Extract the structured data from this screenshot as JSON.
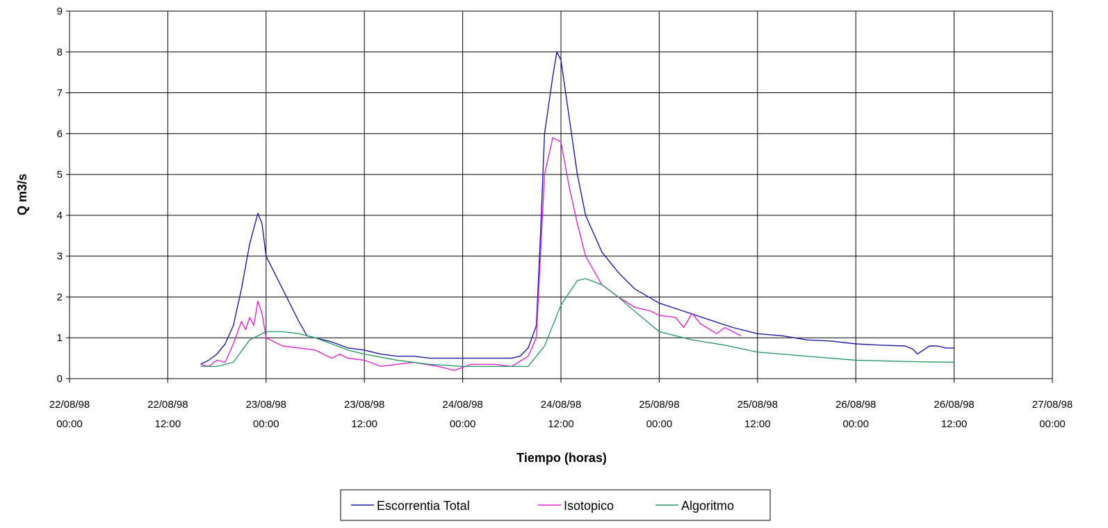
{
  "chart_data": {
    "type": "line",
    "title": "",
    "xlabel": "Tiempo (horas)",
    "ylabel": "Q m3/s",
    "ylim": [
      0,
      9
    ],
    "yticks": [
      "0",
      "1",
      "2",
      "3",
      "4",
      "5",
      "6",
      "7",
      "8",
      "9"
    ],
    "xlim": [
      "22/08/98 00:00",
      "27/08/98 00:00"
    ],
    "xticks": [
      {
        "date": "22/08/98",
        "time": "00:00"
      },
      {
        "date": "22/08/98",
        "time": "12:00"
      },
      {
        "date": "23/08/98",
        "time": "00:00"
      },
      {
        "date": "23/08/98",
        "time": "12:00"
      },
      {
        "date": "24/08/98",
        "time": "00:00"
      },
      {
        "date": "24/08/98",
        "time": "12:00"
      },
      {
        "date": "25/08/98",
        "time": "00:00"
      },
      {
        "date": "25/08/98",
        "time": "12:00"
      },
      {
        "date": "26/08/98",
        "time": "00:00"
      },
      {
        "date": "26/08/98",
        "time": "12:00"
      },
      {
        "date": "27/08/98",
        "time": "00:00"
      }
    ],
    "grid": true,
    "legend_position": "bottom",
    "series": [
      {
        "name": "Escorrentia Total",
        "color": "#1a1aa6",
        "points": [
          [
            "22/08/98 16:00",
            0.35
          ],
          [
            "22/08/98 17:00",
            0.45
          ],
          [
            "22/08/98 18:00",
            0.6
          ],
          [
            "22/08/98 19:00",
            0.85
          ],
          [
            "22/08/98 20:00",
            1.3
          ],
          [
            "22/08/98 21:00",
            2.2
          ],
          [
            "22/08/98 22:00",
            3.3
          ],
          [
            "22/08/98 23:00",
            4.05
          ],
          [
            "22/08/98 23:30",
            3.8
          ],
          [
            "23/08/98 00:00",
            3.0
          ],
          [
            "23/08/98 02:00",
            2.2
          ],
          [
            "23/08/98 04:00",
            1.4
          ],
          [
            "23/08/98 05:00",
            1.05
          ],
          [
            "23/08/98 06:00",
            1.0
          ],
          [
            "23/08/98 08:00",
            0.9
          ],
          [
            "23/08/98 10:00",
            0.75
          ],
          [
            "23/08/98 12:00",
            0.7
          ],
          [
            "23/08/98 14:00",
            0.6
          ],
          [
            "23/08/98 16:00",
            0.55
          ],
          [
            "23/08/98 18:00",
            0.55
          ],
          [
            "23/08/98 20:00",
            0.5
          ],
          [
            "24/08/98 00:00",
            0.5
          ],
          [
            "24/08/98 02:00",
            0.5
          ],
          [
            "24/08/98 04:00",
            0.5
          ],
          [
            "24/08/98 06:00",
            0.5
          ],
          [
            "24/08/98 07:00",
            0.55
          ],
          [
            "24/08/98 08:00",
            0.75
          ],
          [
            "24/08/98 09:00",
            1.3
          ],
          [
            "24/08/98 09:30",
            3.5
          ],
          [
            "24/08/98 10:00",
            6.0
          ],
          [
            "24/08/98 11:00",
            7.4
          ],
          [
            "24/08/98 11:30",
            8.0
          ],
          [
            "24/08/98 12:00",
            7.8
          ],
          [
            "24/08/98 13:00",
            6.4
          ],
          [
            "24/08/98 14:00",
            5.0
          ],
          [
            "24/08/98 15:00",
            4.0
          ],
          [
            "24/08/98 17:00",
            3.1
          ],
          [
            "24/08/98 19:00",
            2.6
          ],
          [
            "24/08/98 21:00",
            2.2
          ],
          [
            "25/08/98 00:00",
            1.85
          ],
          [
            "25/08/98 03:00",
            1.65
          ],
          [
            "25/08/98 06:00",
            1.45
          ],
          [
            "25/08/98 09:00",
            1.25
          ],
          [
            "25/08/98 12:00",
            1.1
          ],
          [
            "25/08/98 15:00",
            1.05
          ],
          [
            "25/08/98 18:00",
            0.95
          ],
          [
            "25/08/98 21:00",
            0.92
          ],
          [
            "26/08/98 00:00",
            0.85
          ],
          [
            "26/08/98 03:00",
            0.82
          ],
          [
            "26/08/98 06:00",
            0.8
          ],
          [
            "26/08/98 07:00",
            0.72
          ],
          [
            "26/08/98 07:30",
            0.6
          ],
          [
            "26/08/98 09:00",
            0.8
          ],
          [
            "26/08/98 10:00",
            0.8
          ],
          [
            "26/08/98 11:00",
            0.75
          ],
          [
            "26/08/98 12:00",
            0.75
          ]
        ]
      },
      {
        "name": "Isotopico",
        "color": "#e023d4",
        "points": [
          [
            "22/08/98 16:00",
            0.35
          ],
          [
            "22/08/98 17:00",
            0.3
          ],
          [
            "22/08/98 18:00",
            0.45
          ],
          [
            "22/08/98 19:00",
            0.4
          ],
          [
            "22/08/98 20:00",
            0.85
          ],
          [
            "22/08/98 21:00",
            1.4
          ],
          [
            "22/08/98 21:30",
            1.2
          ],
          [
            "22/08/98 22:00",
            1.5
          ],
          [
            "22/08/98 22:30",
            1.3
          ],
          [
            "22/08/98 23:00",
            1.9
          ],
          [
            "22/08/98 23:30",
            1.6
          ],
          [
            "23/08/98 00:00",
            1.0
          ],
          [
            "23/08/98 02:00",
            0.8
          ],
          [
            "23/08/98 04:00",
            0.75
          ],
          [
            "23/08/98 06:00",
            0.7
          ],
          [
            "23/08/98 08:00",
            0.5
          ],
          [
            "23/08/98 09:00",
            0.6
          ],
          [
            "23/08/98 10:00",
            0.5
          ],
          [
            "23/08/98 12:00",
            0.45
          ],
          [
            "23/08/98 14:00",
            0.3
          ],
          [
            "23/08/98 16:00",
            0.35
          ],
          [
            "23/08/98 18:00",
            0.4
          ],
          [
            "23/08/98 21:00",
            0.3
          ],
          [
            "23/08/98 23:00",
            0.2
          ],
          [
            "24/08/98 01:00",
            0.35
          ],
          [
            "24/08/98 04:00",
            0.35
          ],
          [
            "24/08/98 06:00",
            0.3
          ],
          [
            "24/08/98 08:00",
            0.55
          ],
          [
            "24/08/98 09:00",
            1.0
          ],
          [
            "24/08/98 09:30",
            3.0
          ],
          [
            "24/08/98 10:00",
            5.0
          ],
          [
            "24/08/98 11:00",
            5.9
          ],
          [
            "24/08/98 12:00",
            5.8
          ],
          [
            "24/08/98 13:00",
            4.7
          ],
          [
            "24/08/98 14:00",
            3.8
          ],
          [
            "24/08/98 15:00",
            3.0
          ],
          [
            "24/08/98 17:00",
            2.3
          ],
          [
            "24/08/98 19:00",
            2.0
          ],
          [
            "24/08/98 21:00",
            1.75
          ],
          [
            "24/08/98 23:00",
            1.65
          ],
          [
            "25/08/98 00:00",
            1.55
          ],
          [
            "25/08/98 02:00",
            1.5
          ],
          [
            "25/08/98 03:00",
            1.25
          ],
          [
            "25/08/98 04:00",
            1.6
          ],
          [
            "25/08/98 05:00",
            1.35
          ],
          [
            "25/08/98 07:00",
            1.1
          ],
          [
            "25/08/98 08:00",
            1.25
          ],
          [
            "25/08/98 10:00",
            1.05
          ]
        ]
      },
      {
        "name": "Algoritmo",
        "color": "#2f9a6b",
        "points": [
          [
            "22/08/98 16:00",
            0.3
          ],
          [
            "22/08/98 18:00",
            0.3
          ],
          [
            "22/08/98 20:00",
            0.4
          ],
          [
            "22/08/98 22:00",
            0.95
          ],
          [
            "23/08/98 00:00",
            1.15
          ],
          [
            "23/08/98 02:00",
            1.15
          ],
          [
            "23/08/98 04:00",
            1.1
          ],
          [
            "23/08/98 06:00",
            1.0
          ],
          [
            "23/08/98 08:00",
            0.85
          ],
          [
            "23/08/98 10:00",
            0.7
          ],
          [
            "23/08/98 12:00",
            0.6
          ],
          [
            "23/08/98 16:00",
            0.45
          ],
          [
            "23/08/98 20:00",
            0.35
          ],
          [
            "24/08/98 00:00",
            0.3
          ],
          [
            "24/08/98 04:00",
            0.3
          ],
          [
            "24/08/98 08:00",
            0.3
          ],
          [
            "24/08/98 10:00",
            0.8
          ],
          [
            "24/08/98 12:00",
            1.8
          ],
          [
            "24/08/98 14:00",
            2.4
          ],
          [
            "24/08/98 15:00",
            2.45
          ],
          [
            "24/08/98 17:00",
            2.3
          ],
          [
            "24/08/98 19:00",
            2.0
          ],
          [
            "24/08/98 21:00",
            1.65
          ],
          [
            "25/08/98 00:00",
            1.15
          ],
          [
            "25/08/98 04:00",
            0.95
          ],
          [
            "25/08/98 08:00",
            0.82
          ],
          [
            "25/08/98 12:00",
            0.65
          ],
          [
            "25/08/98 18:00",
            0.55
          ],
          [
            "26/08/98 00:00",
            0.45
          ],
          [
            "26/08/98 06:00",
            0.42
          ],
          [
            "26/08/98 12:00",
            0.4
          ]
        ]
      }
    ]
  }
}
